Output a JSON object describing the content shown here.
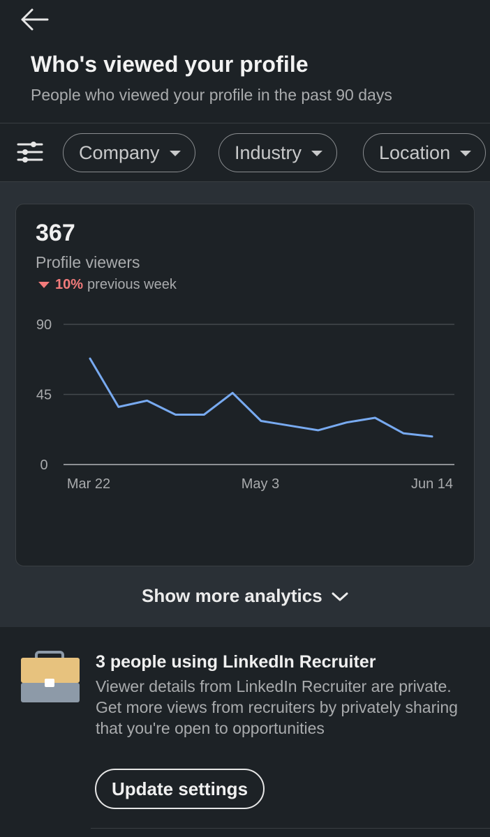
{
  "header": {
    "title": "Who's viewed your profile",
    "subtitle": "People who viewed your profile in the past 90 days"
  },
  "filters": [
    {
      "label": "Company"
    },
    {
      "label": "Industry"
    },
    {
      "label": "Location"
    }
  ],
  "summary": {
    "total": "367",
    "label": "Profile viewers",
    "change_pct": "10%",
    "change_text": "previous week",
    "change_direction": "down",
    "change_color": "#f37b7b"
  },
  "chart_data": {
    "type": "line",
    "title": "",
    "xlabel": "",
    "ylabel": "",
    "ylim": [
      0,
      90
    ],
    "yticks": [
      "90",
      "45",
      "0"
    ],
    "xticks": [
      "Mar 22",
      "May 3",
      "Jun 14"
    ],
    "series": [
      {
        "name": "Profile viewers",
        "color": "#78aaf0",
        "values": [
          68,
          37,
          41,
          32,
          32,
          46,
          28,
          25,
          22,
          27,
          30,
          20,
          18
        ]
      }
    ]
  },
  "show_more": {
    "label": "Show more analytics"
  },
  "recruiter": {
    "title": "3 people using LinkedIn Recruiter",
    "body": "Viewer details from LinkedIn Recruiter are private. Get more views from recruiters by privately sharing that you're open to opportunities",
    "button_label": "Update settings"
  }
}
